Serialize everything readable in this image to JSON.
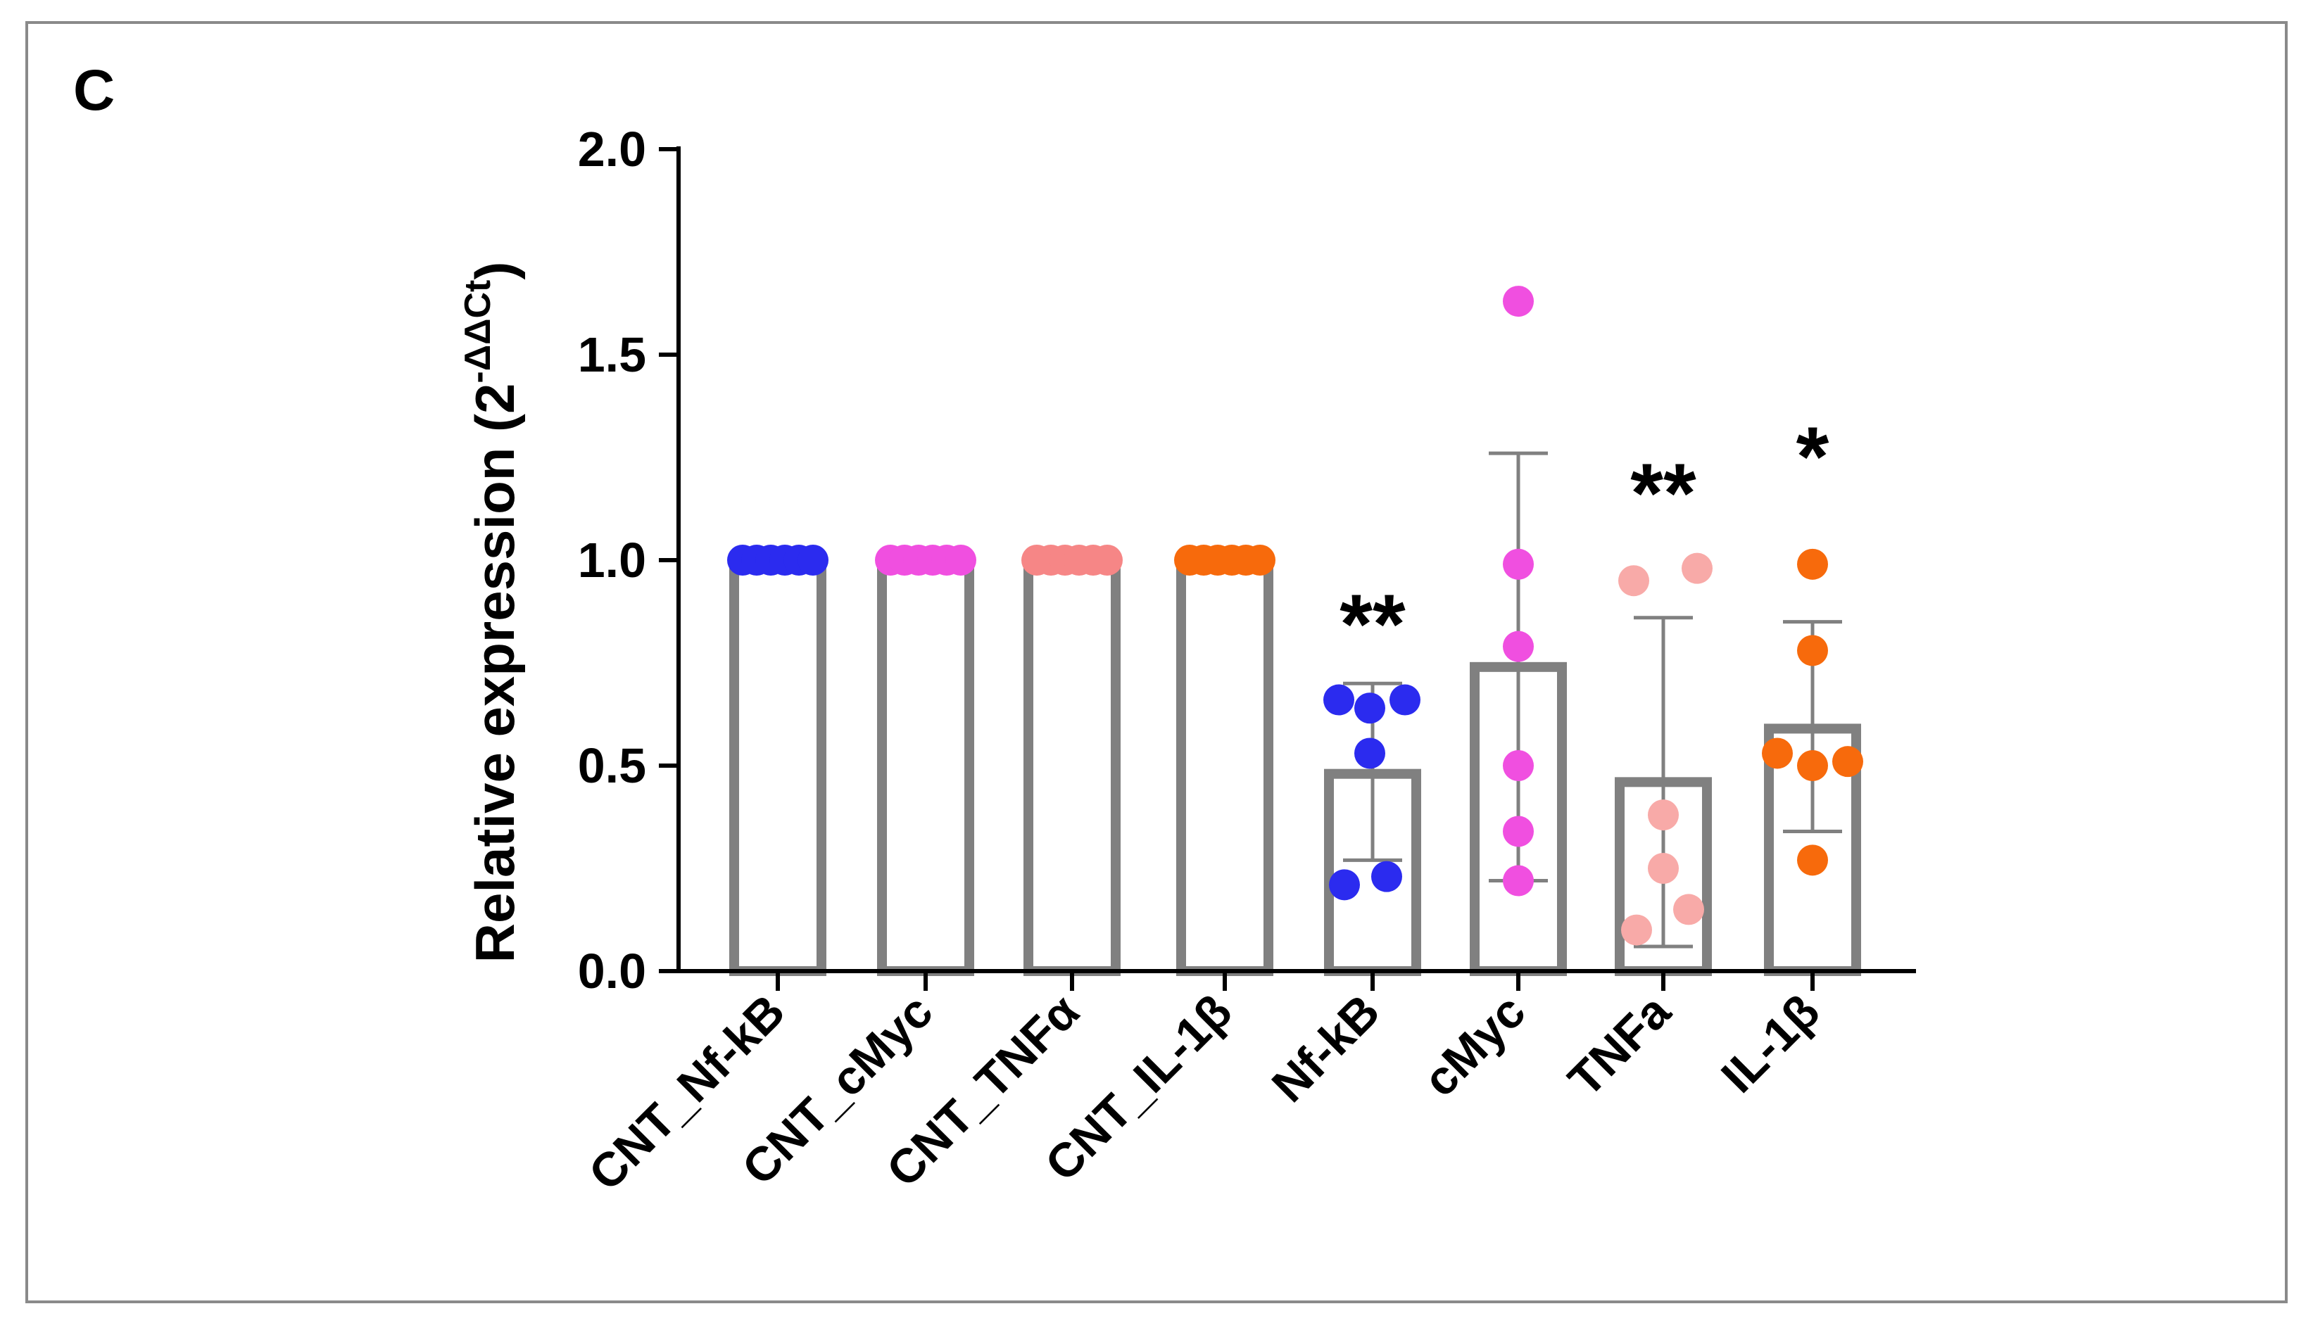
{
  "panel_label": "C",
  "chart_data": {
    "type": "bar",
    "title": "",
    "xlabel": "",
    "ylabel": "Relative expression (2",
    "ylabel_superscript": "-ΔΔCt",
    "ylabel_close": ")",
    "ylim": [
      0,
      2.0
    ],
    "yticks": [
      0.0,
      0.5,
      1.0,
      1.5,
      2.0
    ],
    "ytick_labels": [
      "0.0",
      "0.5",
      "1.0",
      "1.5",
      "2.0"
    ],
    "categories": [
      "CNT_Nf-kB",
      "CNT_cMyc",
      "CNT_TNFα",
      "CNT_IL-1β",
      "Nf-kB",
      "cMyc",
      "TNFa",
      "IL-1β"
    ],
    "values": [
      1.0,
      1.0,
      1.0,
      1.0,
      0.48,
      0.74,
      0.46,
      0.59
    ],
    "error_upper": [
      null,
      null,
      null,
      null,
      0.7,
      1.26,
      0.86,
      0.85
    ],
    "error_lower": [
      null,
      null,
      null,
      null,
      0.27,
      0.22,
      0.06,
      0.34
    ],
    "points": [
      [
        1.0,
        1.0,
        1.0,
        1.0,
        1.0,
        1.0
      ],
      [
        1.0,
        1.0,
        1.0,
        1.0,
        1.0,
        1.0
      ],
      [
        1.0,
        1.0,
        1.0,
        1.0,
        1.0,
        1.0
      ],
      [
        1.0,
        1.0,
        1.0,
        1.0,
        1.0,
        1.0
      ],
      [
        0.66,
        0.64,
        0.66,
        0.53,
        0.21,
        0.23
      ],
      [
        1.63,
        0.99,
        0.79,
        0.5,
        0.34,
        0.22
      ],
      [
        0.95,
        0.98,
        0.38,
        0.25,
        0.1,
        0.15
      ],
      [
        0.99,
        0.78,
        0.53,
        0.5,
        0.51,
        0.27
      ]
    ],
    "point_colors": [
      "#2b2bef",
      "#f04fe0",
      "#f68686",
      "#f76a0c",
      "#2b2bef",
      "#f04fe0",
      "#f8aaa8",
      "#f76a0c"
    ],
    "significance": [
      "",
      "",
      "",
      "",
      "**",
      "",
      "**",
      "*"
    ],
    "bar_color": "#808080"
  }
}
